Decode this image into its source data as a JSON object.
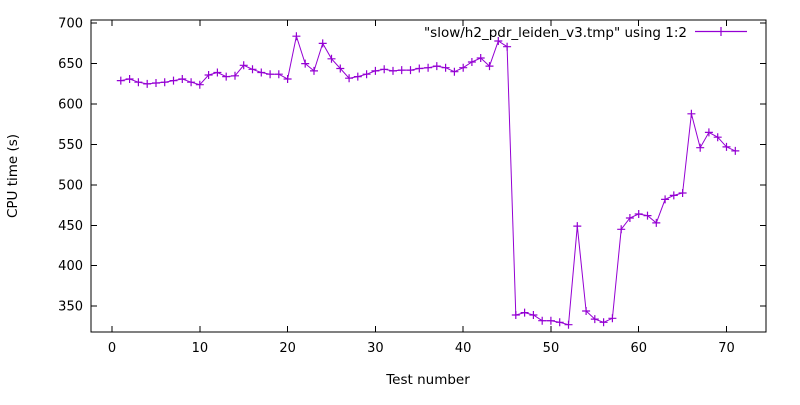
{
  "chart_data": {
    "type": "line",
    "title": "",
    "xlabel": "Test number",
    "ylabel": "CPU time (s)",
    "legend": {
      "label": "\"slow/h2_pdr_leiden_v3.tmp\" using 1:2",
      "position": "top-right"
    },
    "xlim": [
      -2.4,
      74.5
    ],
    "ylim": [
      318,
      704
    ],
    "xticks": [
      0,
      10,
      20,
      30,
      40,
      50,
      60,
      70
    ],
    "yticks": [
      350,
      400,
      450,
      500,
      550,
      600,
      650,
      700
    ],
    "grid": false,
    "background": "#ffffff",
    "axis_color": "#000000",
    "series": [
      {
        "name": "\"slow/h2_pdr_leiden_v3.tmp\" using 1:2",
        "color": "#9400d3",
        "marker": "plus",
        "x": [
          1,
          2,
          3,
          4,
          5,
          6,
          7,
          8,
          9,
          10,
          11,
          12,
          13,
          14,
          15,
          16,
          17,
          18,
          19,
          20,
          21,
          22,
          23,
          24,
          25,
          26,
          27,
          28,
          29,
          30,
          31,
          32,
          33,
          34,
          35,
          36,
          37,
          38,
          39,
          40,
          41,
          42,
          43,
          44,
          45,
          46,
          47,
          48,
          49,
          50,
          51,
          52,
          53,
          54,
          55,
          56,
          57,
          58,
          59,
          60,
          61,
          62,
          63,
          64,
          65,
          66,
          67,
          68,
          69,
          70,
          71
        ],
        "y": [
          629,
          631,
          627,
          625,
          626,
          627,
          629,
          631,
          627,
          624,
          636,
          639,
          634,
          635,
          648,
          643,
          639,
          637,
          637,
          631,
          684,
          650,
          641,
          675,
          656,
          644,
          632,
          634,
          637,
          641,
          643,
          641,
          642,
          642,
          644,
          645,
          647,
          645,
          640,
          645,
          652,
          657,
          647,
          678,
          671,
          339,
          342,
          339,
          332,
          332,
          330,
          327,
          449,
          344,
          334,
          330,
          335,
          445,
          459,
          464,
          462,
          453,
          482,
          487,
          490,
          588,
          546,
          565,
          559,
          547,
          542
        ]
      }
    ]
  }
}
